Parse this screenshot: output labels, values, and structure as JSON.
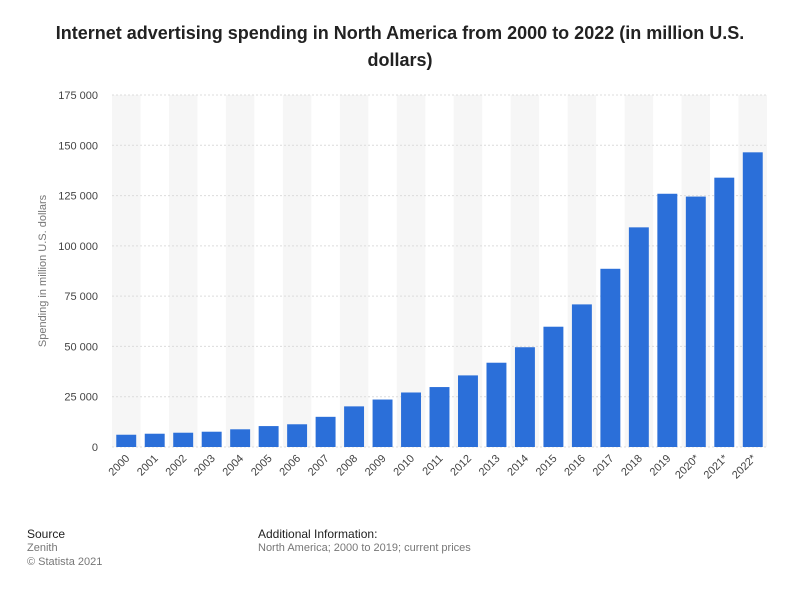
{
  "chart_data": {
    "type": "bar",
    "title": "Internet advertising spending in North America from 2000 to 2022 (in million U.S. dollars)",
    "xlabel": "",
    "ylabel": "Spending in million U.S. dollars",
    "categories": [
      "2000",
      "2001",
      "2002",
      "2003",
      "2004",
      "2005",
      "2006",
      "2007",
      "2008",
      "2009",
      "2010",
      "2011",
      "2012",
      "2013",
      "2014",
      "2015",
      "2016",
      "2017",
      "2018",
      "2019",
      "2020*",
      "2021*",
      "2022*"
    ],
    "values": [
      6100,
      6600,
      7100,
      7600,
      8800,
      10400,
      11300,
      15000,
      20200,
      23600,
      27100,
      29800,
      35600,
      41900,
      49600,
      59800,
      70900,
      88600,
      109200,
      125900,
      124500,
      133900,
      146500
    ],
    "ylim": [
      0,
      175000
    ],
    "yticks": [
      0,
      25000,
      50000,
      75000,
      100000,
      125000,
      150000,
      175000
    ],
    "ytick_labels": [
      "0",
      "25 000",
      "50 000",
      "75 000",
      "100 000",
      "125 000",
      "150 000",
      "175 000"
    ],
    "grid": true,
    "bar_color": "#2b6fd9"
  },
  "footer": {
    "source_heading": "Source",
    "source_name": "Zenith",
    "copyright": "© Statista 2021",
    "info_heading": "Additional Information:",
    "info_text": "North America; 2000 to 2019; current prices"
  }
}
